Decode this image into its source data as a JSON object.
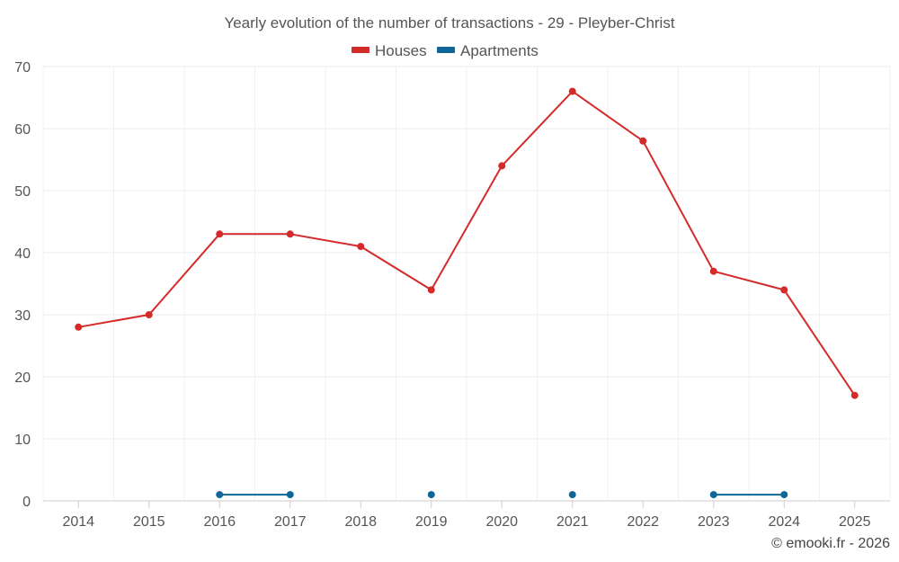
{
  "chart_data": {
    "type": "line",
    "title": "Yearly evolution of the number of transactions - 29 - Pleyber-Christ",
    "categories": [
      "2014",
      "2015",
      "2016",
      "2017",
      "2018",
      "2019",
      "2020",
      "2021",
      "2022",
      "2023",
      "2024",
      "2025"
    ],
    "series": [
      {
        "name": "Houses",
        "color": "#d42a2a",
        "values": [
          28,
          30,
          43,
          43,
          41,
          34,
          54,
          66,
          58,
          37,
          34,
          17
        ]
      },
      {
        "name": "Apartments",
        "color": "#0f6699",
        "values": [
          null,
          null,
          1,
          1,
          null,
          1,
          null,
          1,
          null,
          1,
          1,
          null
        ]
      }
    ],
    "ylim": [
      0,
      70
    ],
    "yticks": [
      0,
      10,
      20,
      30,
      40,
      50,
      60,
      70
    ],
    "xlabel": "",
    "ylabel": "",
    "grid": true,
    "legend_position": "top-center"
  },
  "credit": "© emooki.fr - 2026"
}
